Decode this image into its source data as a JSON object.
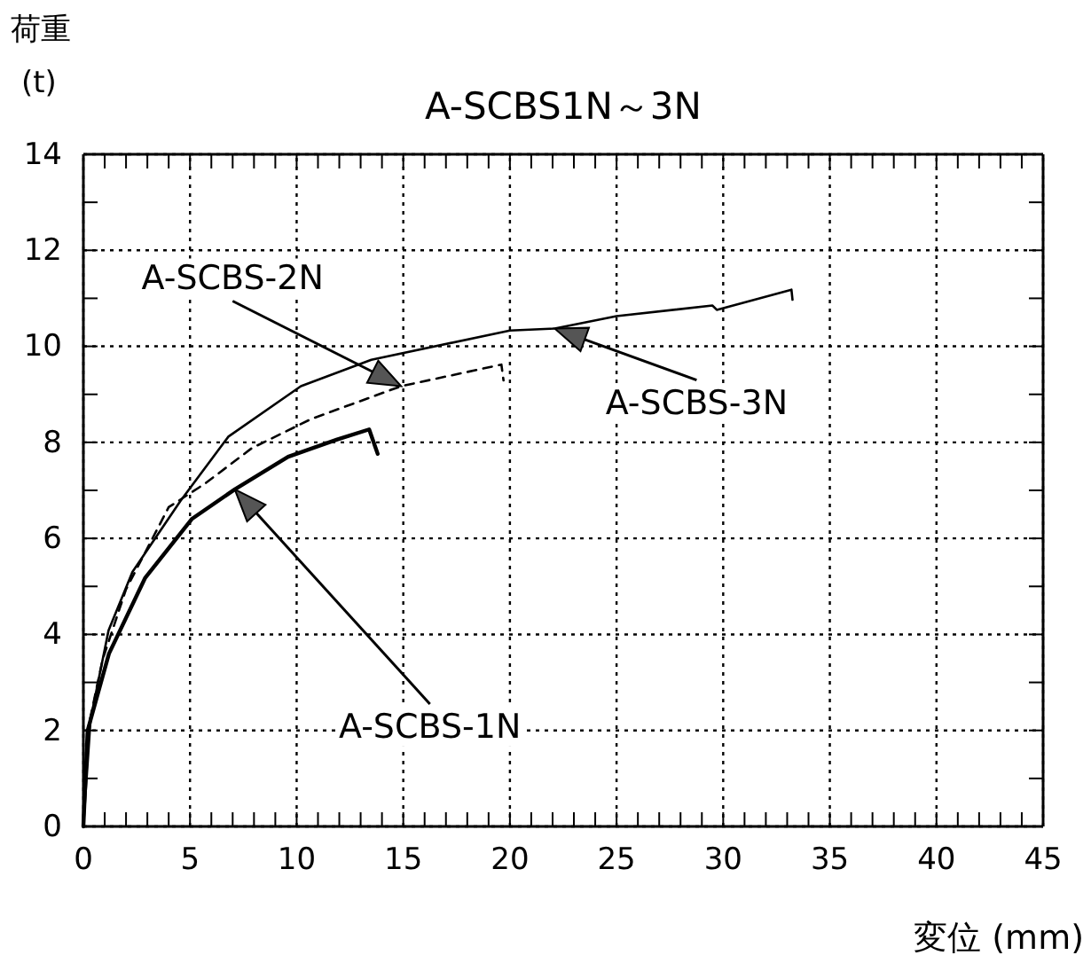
{
  "chart_data": {
    "type": "line",
    "title": "A-SCBS1N～3N",
    "xlabel": "変位 (mm)",
    "ylabel": "荷重 (t)",
    "xlim": [
      0,
      45
    ],
    "ylim": [
      0,
      14
    ],
    "xticks": [
      0,
      {
        "value": 1,
        "label": null
      },
      {
        "value": 2,
        "label": null
      },
      {
        "value": 3,
        "label": null
      },
      {
        "value": 4,
        "label": null
      },
      5,
      {
        "value": 6,
        "label": null
      },
      {
        "value": 7,
        "label": null
      },
      {
        "value": 8,
        "label": null
      },
      {
        "value": 9,
        "label": null
      },
      10,
      {
        "value": 11,
        "label": null
      },
      {
        "value": 12,
        "label": null
      },
      {
        "value": 13,
        "label": null
      },
      {
        "value": 14,
        "label": null
      },
      15,
      {
        "value": 16,
        "label": null
      },
      {
        "value": 17,
        "label": null
      },
      {
        "value": 18,
        "label": null
      },
      {
        "value": 19,
        "label": null
      },
      20,
      {
        "value": 21,
        "label": null
      },
      {
        "value": 22,
        "label": null
      },
      {
        "value": 23,
        "label": null
      },
      {
        "value": 24,
        "label": null
      },
      25,
      {
        "value": 26,
        "label": null
      },
      {
        "value": 27,
        "label": null
      },
      {
        "value": 28,
        "label": null
      },
      {
        "value": 29,
        "label": null
      },
      30,
      {
        "value": 31,
        "label": null
      },
      {
        "value": 32,
        "label": null
      },
      {
        "value": 33,
        "label": null
      },
      {
        "value": 34,
        "label": null
      },
      35,
      {
        "value": 36,
        "label": null
      },
      {
        "value": 37,
        "label": null
      },
      {
        "value": 38,
        "label": null
      },
      {
        "value": 39,
        "label": null
      },
      40,
      {
        "value": 41,
        "label": null
      },
      {
        "value": 42,
        "label": null
      },
      {
        "value": 43,
        "label": null
      },
      {
        "value": 44,
        "label": null
      },
      45
    ],
    "yticks": [
      0,
      {
        "value": 1,
        "label": null
      },
      2,
      {
        "value": 3,
        "label": null
      },
      4,
      {
        "value": 5,
        "label": null
      },
      6,
      {
        "value": 7,
        "label": null
      },
      8,
      {
        "value": 9,
        "label": null
      },
      10,
      {
        "value": 11,
        "label": null
      },
      12,
      {
        "value": 13,
        "label": null
      },
      14
    ],
    "grid": true,
    "marker": "none",
    "series": [
      {
        "name": "A-SCBS-1N",
        "color": "#000000",
        "line_style": "solid",
        "x": [
          0,
          0.2,
          1.2,
          2.9,
          5.1,
          7.1,
          9.6,
          11.9,
          13.4,
          13.8
        ],
        "values": [
          0,
          2.0,
          3.6,
          5.18,
          6.41,
          7.02,
          7.7,
          8.06,
          8.27,
          7.76
        ]
      },
      {
        "name": "A-SCBS-2N",
        "color": "#000000",
        "line_style": "dashed",
        "x": [
          0,
          0.2,
          0.9,
          2.0,
          4.0,
          5.7,
          7.9,
          10.7,
          14.9,
          19.6,
          19.7
        ],
        "values": [
          0,
          2.0,
          3.47,
          4.94,
          6.65,
          7.14,
          7.88,
          8.49,
          9.17,
          9.62,
          9.29
        ]
      },
      {
        "name": "A-SCBS-3N",
        "color": "#000000",
        "line_style": "solid",
        "x": [
          0,
          0.34,
          1.18,
          2.3,
          4.55,
          6.8,
          10.2,
          13.5,
          20,
          22.1,
          25,
          29.5,
          29.7,
          33.2,
          33.25
        ],
        "values": [
          0,
          2.24,
          4.08,
          5.3,
          6.78,
          8.12,
          9.17,
          9.72,
          10.33,
          10.37,
          10.63,
          10.85,
          10.76,
          11.18,
          10.97
        ]
      }
    ]
  }
}
